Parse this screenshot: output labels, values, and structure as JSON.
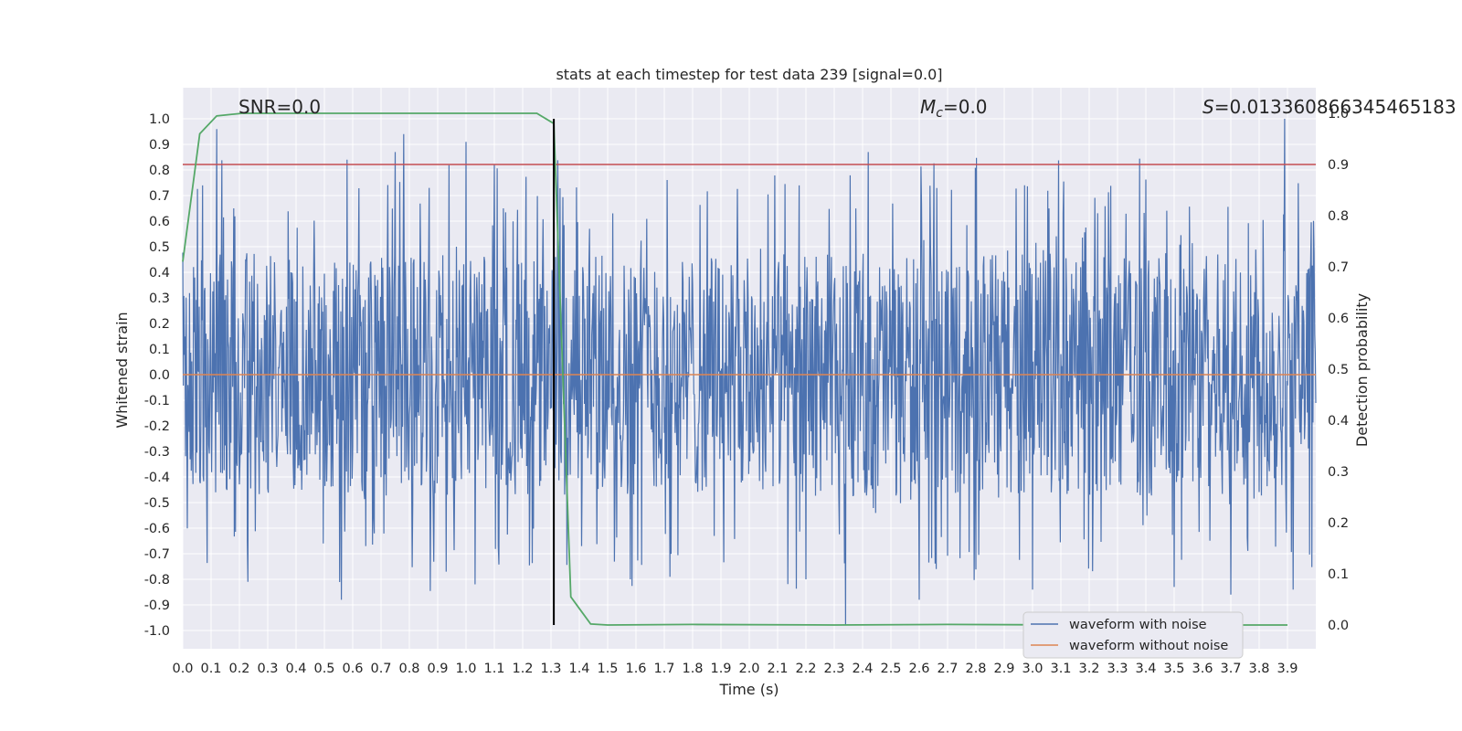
{
  "chart_data": {
    "type": "line",
    "title": "stats at each timestep for test data 239 [signal=0.0]",
    "xlabel": "Time (s)",
    "ylabel": "Whitened strain",
    "y2label": "Detection probability",
    "xlim": [
      0.0,
      4.0
    ],
    "ylim": [
      -1.05,
      1.05
    ],
    "y2lim": [
      -0.0364,
      1.0
    ],
    "x_ticks": [
      "0.0",
      "0.1",
      "0.2",
      "0.3",
      "0.4",
      "0.5",
      "0.6",
      "0.7",
      "0.8",
      "0.9",
      "1.0",
      "1.1",
      "1.2",
      "1.3",
      "1.4",
      "1.5",
      "1.6",
      "1.7",
      "1.8",
      "1.9",
      "2.0",
      "2.1",
      "2.2",
      "2.3",
      "2.4",
      "2.5",
      "2.6",
      "2.7",
      "2.8",
      "2.9",
      "3.0",
      "3.1",
      "3.2",
      "3.3",
      "3.4",
      "3.5",
      "3.6",
      "3.7",
      "3.8",
      "3.9"
    ],
    "y_ticks": [
      "1.0",
      "0.9",
      "0.8",
      "0.7",
      "0.6",
      "0.5",
      "0.4",
      "0.3",
      "0.2",
      "0.1",
      "0.0",
      "-0.1",
      "-0.2",
      "-0.3",
      "-0.4",
      "-0.5",
      "-0.6",
      "-0.7",
      "-0.8",
      "-0.9",
      "-1.0"
    ],
    "y2_ticks": [
      "1.0",
      "0.9",
      "0.8",
      "0.7",
      "0.6",
      "0.5",
      "0.4",
      "0.3",
      "0.2",
      "0.1",
      "0.0"
    ],
    "threshold": {
      "y2": 0.9,
      "color": "#c44e52"
    },
    "marker_time": 1.31,
    "annotations": {
      "snr": "SNR=0.0",
      "mc_symbol": "M",
      "mc_sub": "c",
      "mc_value": "=0.0",
      "s_symbol": "S",
      "s_value": "=0.013360866345465183"
    },
    "legend": {
      "placement": "bottom-right",
      "entries": [
        "waveform with noise",
        "waveform without noise"
      ]
    },
    "series": [
      {
        "name": "waveform with noise",
        "color": "#4c72b0",
        "description": "dense noise trace sampled every 0.002 s, amplitude approx -0.95 to 1.0",
        "spikes": [
          {
            "t": 0.12,
            "v": 0.96
          },
          {
            "t": 0.18,
            "v": 0.65
          },
          {
            "t": 0.23,
            "v": -0.81
          },
          {
            "t": 0.56,
            "v": -0.88
          },
          {
            "t": 0.58,
            "v": 0.84
          },
          {
            "t": 0.75,
            "v": 0.87
          },
          {
            "t": 0.78,
            "v": 0.94
          },
          {
            "t": 0.93,
            "v": -0.77
          },
          {
            "t": 1.0,
            "v": 0.91
          },
          {
            "t": 1.1,
            "v": 0.82
          },
          {
            "t": 1.58,
            "v": -0.8
          },
          {
            "t": 1.72,
            "v": -0.79
          },
          {
            "t": 2.2,
            "v": -0.8
          },
          {
            "t": 2.34,
            "v": -0.98
          },
          {
            "t": 2.42,
            "v": 0.87
          },
          {
            "t": 2.6,
            "v": -0.88
          },
          {
            "t": 3.0,
            "v": -0.84
          },
          {
            "t": 3.5,
            "v": -0.83
          },
          {
            "t": 3.7,
            "v": -0.86
          },
          {
            "t": 3.89,
            "v": 1.0
          },
          {
            "t": 3.92,
            "v": -0.84
          }
        ]
      },
      {
        "name": "waveform without noise",
        "color": "#dd8452",
        "x": [
          0.0,
          4.0
        ],
        "y": [
          0.0,
          0.0
        ]
      },
      {
        "name": "Detection probability",
        "color": "#55a868",
        "axis": "right",
        "x": [
          0.0,
          0.06,
          0.12,
          0.21,
          0.5,
          0.8,
          1.1,
          1.25,
          1.31,
          1.37,
          1.44,
          1.5,
          1.8,
          2.3,
          2.7,
          3.2,
          3.9
        ],
        "y": [
          0.71,
          0.96,
          0.995,
          1.0,
          1.0,
          1.0,
          1.0,
          1.0,
          0.98,
          0.055,
          0.002,
          0.0,
          0.001,
          0.0,
          0.001,
          0.0,
          0.0
        ]
      }
    ]
  }
}
